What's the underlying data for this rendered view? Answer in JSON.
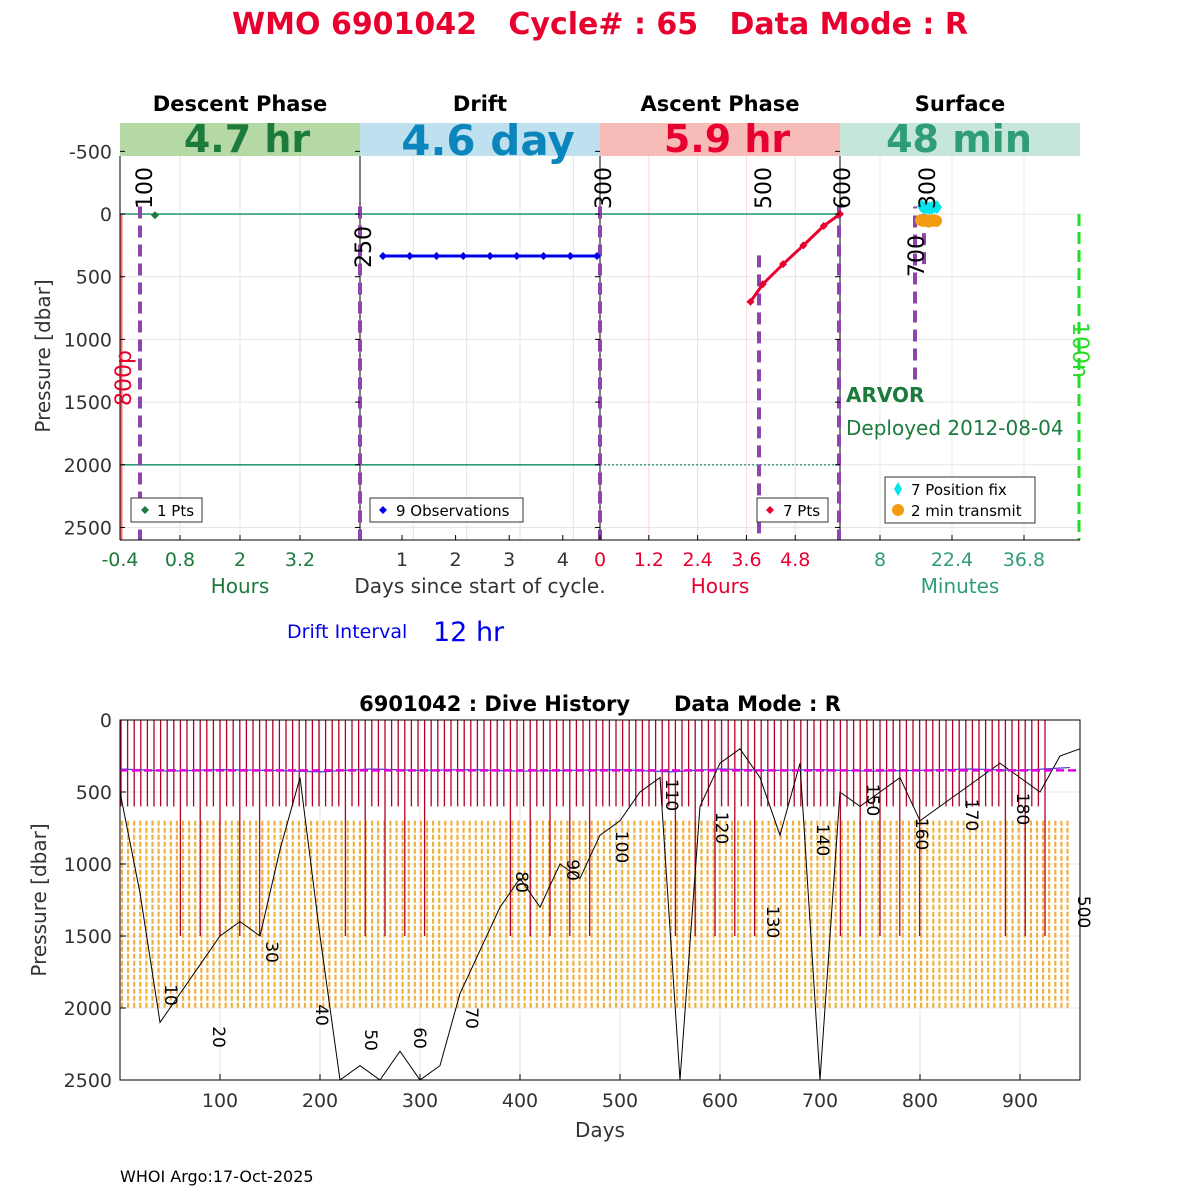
{
  "title": "WMO 6901042   Cycle# : 65   Data Mode : R",
  "footer": "WHOI Argo:17-Oct-2025",
  "colors": {
    "title": "#e8002e",
    "descent": "#1c7a3c",
    "drift": "#0b86bd",
    "ascent": "#e8002e",
    "surface": "#2f9e76",
    "descent_band": "#b5d9a5",
    "drift_band": "#bfe0ee",
    "ascent_band": "#f7bcb8",
    "surface_band": "#c5e6d8",
    "purple": "#8e44ad",
    "blue_pts": "#0000ee",
    "red_pts": "#e8002e",
    "cyan": "#00e5ee",
    "orange": "#f39c12",
    "teal_line": "#2f9e76",
    "green_dash": "#22dd22",
    "salmon": "#ff6a6a",
    "dark_red": "#b30024",
    "magenta": "#dd00dd",
    "drift_history": "#5a3fd6",
    "history_orange": "#f0b040"
  },
  "top_panel": {
    "ylabel": "Pressure [dbar]",
    "yticks": [
      -500,
      0,
      500,
      1000,
      1500,
      2000,
      2500
    ],
    "yrange": [
      -750,
      2600
    ],
    "phases": [
      {
        "name": "Descent Phase",
        "duration": "4.7 hr",
        "unit": "Hours",
        "ticks": [
          "-0.4",
          "0.8",
          "2",
          "3.2"
        ],
        "tick_values": [
          -0.4,
          0.8,
          2,
          3.2
        ],
        "xrange": [
          -0.4,
          4.4
        ],
        "legend": "1 Pts"
      },
      {
        "name": "Drift",
        "duration": "4.6 day",
        "unit": "Days since start of cycle.",
        "ticks": [
          "1",
          "2",
          "3",
          "4"
        ],
        "tick_values": [
          1,
          2,
          3,
          4
        ],
        "xrange": [
          0,
          4.5
        ],
        "legend": "9 Observations"
      },
      {
        "name": "Ascent Phase",
        "duration": "5.9 hr",
        "unit": "Hours",
        "ticks": [
          "0",
          "1.2",
          "2.4",
          "3.6",
          "4.8"
        ],
        "tick_values": [
          0,
          1.2,
          2.4,
          3.6,
          4.8
        ],
        "xrange": [
          0,
          5.9
        ],
        "legend": "7 Pts"
      },
      {
        "name": "Surface",
        "duration": "48 min",
        "unit": "Minutes",
        "ticks": [
          "8",
          "22.4",
          "36.8"
        ],
        "tick_values": [
          8,
          22.4,
          36.8
        ],
        "xrange": [
          0,
          48
        ],
        "legend_fix": "7 Position fix",
        "legend_tx": "2 min transmit"
      }
    ],
    "marker_labels": {
      "descent_100": "100",
      "descent_800p": "800p",
      "drift_250": "250",
      "drift_300": "300",
      "ascent_500": "500",
      "ascent_600": "600",
      "surface_300": "300",
      "surface_700": "700",
      "surface_100n": "100n"
    },
    "float_type": "ARVOR",
    "deployed": "Deployed 2012-08-04",
    "drift_interval_label": "Drift Interval",
    "drift_interval_value": "12 hr"
  },
  "chart_data": [
    {
      "type": "scatter",
      "title": "Descent Phase",
      "xlabel": "Hours",
      "ylabel": "Pressure [dbar]",
      "x": [
        0.3
      ],
      "y": [
        10
      ],
      "xlim": [
        -0.4,
        4.4
      ],
      "ylim": [
        2600,
        -750
      ]
    },
    {
      "type": "line",
      "title": "Drift",
      "xlabel": "Days since start of cycle.",
      "ylabel": "Pressure [dbar]",
      "x": [
        0.6,
        1.1,
        1.6,
        2.1,
        2.6,
        3.1,
        3.6,
        4.1,
        4.5
      ],
      "y": [
        335,
        335,
        335,
        335,
        335,
        335,
        335,
        335,
        335
      ],
      "xlim": [
        0,
        4.5
      ],
      "ylim": [
        2600,
        -750
      ]
    },
    {
      "type": "line",
      "title": "Ascent Phase",
      "xlabel": "Hours",
      "ylabel": "Pressure [dbar]",
      "x": [
        3.7,
        4.0,
        4.5,
        5.0,
        5.5,
        5.9
      ],
      "y": [
        700,
        560,
        400,
        250,
        95,
        0
      ],
      "xlim": [
        0,
        5.9
      ],
      "ylim": [
        2600,
        -750
      ]
    },
    {
      "type": "scatter",
      "title": "Surface",
      "xlabel": "Minutes",
      "ylabel": "Pressure [dbar]",
      "series": [
        {
          "name": "7 Position fix",
          "x": [
            16,
            16.5,
            17,
            17.5,
            18,
            18.5,
            19
          ],
          "y": [
            -60,
            -50,
            -55,
            -45,
            -50,
            -60,
            -55
          ]
        },
        {
          "name": "2 min transmit",
          "x": [
            16,
            16.5,
            17,
            17.5,
            18,
            18.5,
            19
          ],
          "y": [
            50,
            55,
            50,
            60,
            55,
            50,
            55
          ]
        }
      ],
      "xlim": [
        0,
        48
      ],
      "ylim": [
        2600,
        -750
      ]
    },
    {
      "type": "line",
      "title": "6901042 : Dive History      Data Mode : R",
      "xlabel": "Days",
      "ylabel": "Pressure [dbar]",
      "xticks": [
        100,
        200,
        300,
        400,
        500,
        600,
        700,
        800,
        900
      ],
      "yticks": [
        0,
        500,
        1000,
        1500,
        2000,
        2500
      ],
      "xlim": [
        0,
        960
      ],
      "ylim": [
        2500,
        0
      ],
      "drift_pressure": 350,
      "profile_pressure": 2000,
      "cycle_labels": [
        "10",
        "20",
        "30",
        "40",
        "50",
        "60",
        "70",
        "80",
        "90",
        "100",
        "110",
        "120",
        "130",
        "140",
        "150",
        "160",
        "170",
        "180",
        "500"
      ],
      "series": [
        {
          "name": "park depth trace",
          "x": [
            0,
            50,
            100,
            150,
            200,
            250,
            300,
            350,
            400,
            450,
            500,
            550,
            600,
            650,
            700,
            750,
            800,
            850,
            900,
            950
          ],
          "y": [
            340,
            355,
            345,
            350,
            360,
            340,
            350,
            345,
            355,
            350,
            345,
            360,
            340,
            350,
            345,
            355,
            350,
            340,
            350,
            330
          ]
        },
        {
          "name": "max pressure trace",
          "x": [
            0,
            20,
            40,
            60,
            80,
            100,
            120,
            140,
            160,
            180,
            200,
            220,
            240,
            260,
            280,
            300,
            320,
            340,
            360,
            380,
            400,
            420,
            440,
            460,
            480,
            500,
            520,
            540,
            560,
            580,
            600,
            620,
            640,
            660,
            680,
            700,
            720,
            740,
            760,
            780,
            800,
            820,
            840,
            860,
            880,
            900,
            920,
            940,
            960
          ],
          "y": [
            500,
            1200,
            2100,
            1900,
            1700,
            1500,
            1400,
            1500,
            900,
            400,
            1500,
            2500,
            2400,
            2500,
            2300,
            2500,
            2400,
            1900,
            1600,
            1300,
            1100,
            1300,
            1000,
            1100,
            800,
            700,
            500,
            400,
            2500,
            600,
            300,
            200,
            400,
            800,
            300,
            2500,
            500,
            600,
            500,
            400,
            700,
            600,
            500,
            400,
            300,
            400,
            500,
            250,
            200
          ]
        }
      ]
    }
  ]
}
